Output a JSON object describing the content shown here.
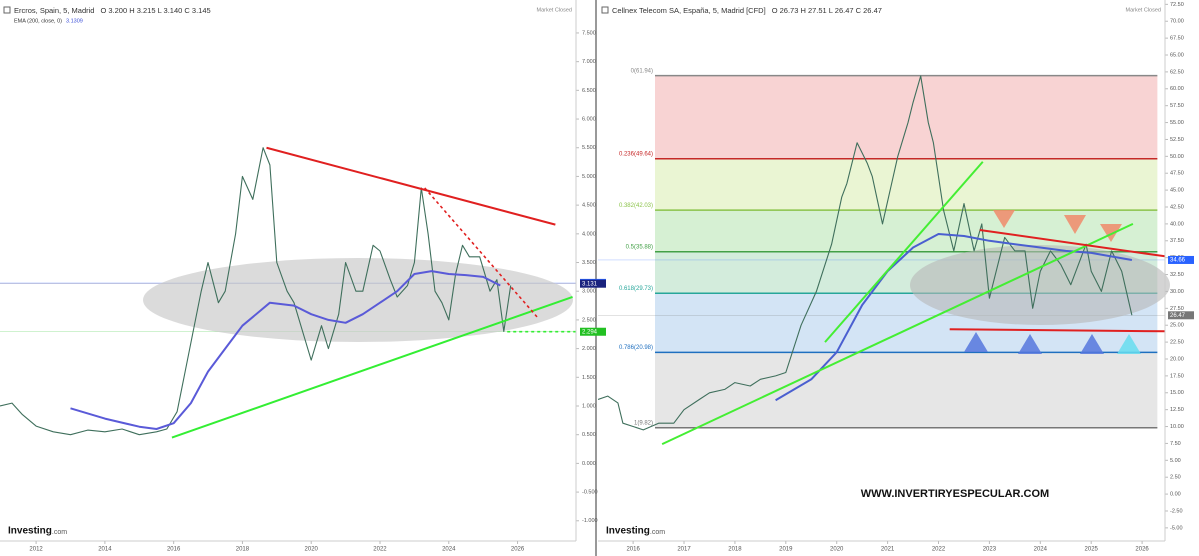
{
  "chart_data": [
    {
      "type": "line",
      "title": "Ercros, Spain, 5, Madrid",
      "ohlc": "O 3.200 H 3.215 L 3.140 C 3.145",
      "status": "Market Closed",
      "indicator": "EMA (200, close, 0)",
      "indicator_value": 3.1309,
      "xlim": [
        2010.95,
        2027.7
      ],
      "xticks": [
        2012,
        2014,
        2016,
        2018,
        2020,
        2022,
        2024,
        2026
      ],
      "ylim": [
        -1.3,
        7.9
      ],
      "yticks": [
        {
          "value": 7.5,
          "label": "7.500"
        },
        {
          "value": 7.0,
          "label": "7.000"
        },
        {
          "value": 6.5,
          "label": "6.500"
        },
        {
          "value": 6.0,
          "label": "6.000"
        },
        {
          "value": 5.5,
          "label": "5.500"
        },
        {
          "value": 5.0,
          "label": "5.000"
        },
        {
          "value": 4.5,
          "label": "4.500"
        },
        {
          "value": 4.0,
          "label": "4.000"
        },
        {
          "value": 3.5,
          "label": "3.500"
        },
        {
          "value": 3.0,
          "label": "3.000"
        },
        {
          "value": 2.5,
          "label": "2.500"
        },
        {
          "value": 2.0,
          "label": "2.000"
        },
        {
          "value": 1.5,
          "label": "1.500"
        },
        {
          "value": 1.0,
          "label": "1.000"
        },
        {
          "value": 0.5,
          "label": "0.500"
        },
        {
          "value": 0.0,
          "label": "0.000"
        },
        {
          "value": -0.5,
          "label": "-0.500"
        },
        {
          "value": -1.0,
          "label": "-1.000"
        }
      ],
      "series": [
        {
          "color": "#3f6f5c",
          "x": [
            2010.95,
            2011.3,
            2011.6,
            2012.0,
            2012.5,
            2013.0,
            2013.5,
            2014.0,
            2014.5,
            2015.0,
            2015.5,
            2015.8,
            2016.1,
            2016.3,
            2016.6,
            2016.8,
            2017.0,
            2017.3,
            2017.5,
            2017.8,
            2018.0,
            2018.3,
            2018.6,
            2018.8,
            2019.0,
            2019.3,
            2019.5,
            2019.8,
            2020.0,
            2020.3,
            2020.5,
            2020.8,
            2021.0,
            2021.3,
            2021.5,
            2021.8,
            2022.0,
            2022.3,
            2022.5,
            2022.8,
            2023.0,
            2023.2,
            2023.4,
            2023.6,
            2023.8,
            2024.0,
            2024.2,
            2024.4,
            2024.6,
            2024.9,
            2025.2,
            2025.4,
            2025.6,
            2025.8
          ],
          "values": [
            1.0,
            1.05,
            0.85,
            0.65,
            0.55,
            0.5,
            0.58,
            0.55,
            0.6,
            0.5,
            0.55,
            0.6,
            0.9,
            1.5,
            2.4,
            3.0,
            3.5,
            2.8,
            3.0,
            4.0,
            5.0,
            4.6,
            5.5,
            5.2,
            3.5,
            3.0,
            2.8,
            2.2,
            1.8,
            2.4,
            2.0,
            2.6,
            3.5,
            3.0,
            3.0,
            3.8,
            3.7,
            3.2,
            2.9,
            3.1,
            3.5,
            4.8,
            4.0,
            3.0,
            2.8,
            2.5,
            3.3,
            3.8,
            3.6,
            3.6,
            3.0,
            3.2,
            2.3,
            3.1
          ]
        },
        {
          "color": "#5a5ad8",
          "x": [
            2013.0,
            2014.0,
            2015.0,
            2015.5,
            2016.0,
            2016.5,
            2017.0,
            2017.5,
            2018.0,
            2018.8,
            2019.5,
            2020.0,
            2020.5,
            2021.0,
            2021.5,
            2022.0,
            2022.5,
            2023.0,
            2023.5,
            2024.0,
            2024.5,
            2025.0,
            2025.5
          ],
          "values": [
            0.96,
            0.78,
            0.64,
            0.6,
            0.7,
            1.05,
            1.6,
            2.0,
            2.4,
            2.8,
            2.75,
            2.6,
            2.5,
            2.45,
            2.6,
            2.8,
            3.0,
            3.3,
            3.35,
            3.3,
            3.28,
            3.25,
            3.1
          ]
        }
      ],
      "trendlines": [
        {
          "color": "#e02020",
          "dash": false,
          "x": [
            2018.7,
            2027.1
          ],
          "values": [
            5.5,
            4.16
          ]
        },
        {
          "color": "#33ee33",
          "dash": false,
          "x": [
            2015.95,
            2027.6
          ],
          "values": [
            0.45,
            2.9
          ]
        },
        {
          "color": "#e02020",
          "dash": true,
          "x": [
            2023.3,
            2026.6
          ],
          "values": [
            4.8,
            2.53
          ]
        },
        {
          "color": "#33ee33",
          "dash": true,
          "x": [
            2025.7,
            2027.7
          ],
          "values": [
            2.294,
            2.294
          ]
        }
      ],
      "price_labels": [
        {
          "value": 3.145,
          "color": "#2962ff"
        },
        {
          "value": 3.131,
          "color": "#1a237e"
        },
        {
          "value": 2.294,
          "color": "#22c022"
        }
      ]
    },
    {
      "type": "line",
      "title": "Cellnex Telecom SA, España, 5, Madrid [CFD]",
      "ohlc": "O 26.73 H 27.51 L 26.47 C 26.47",
      "status": "Market Closed",
      "xlim": [
        2015.31,
        2026.45
      ],
      "xticks": [
        2016,
        2017,
        2018,
        2019,
        2020,
        2021,
        2022,
        2023,
        2024,
        2025,
        2026
      ],
      "ylim": [
        -6.5,
        72.7
      ],
      "yticks": [
        {
          "value": 72.5,
          "label": "72.50"
        },
        {
          "value": 70,
          "label": "70.00"
        },
        {
          "value": 67.5,
          "label": "67.50"
        },
        {
          "value": 65,
          "label": "65.00"
        },
        {
          "value": 62.5,
          "label": "62.50"
        },
        {
          "value": 60,
          "label": "60.00"
        },
        {
          "value": 57.5,
          "label": "57.50"
        },
        {
          "value": 55,
          "label": "55.00"
        },
        {
          "value": 52.5,
          "label": "52.50"
        },
        {
          "value": 50,
          "label": "50.00"
        },
        {
          "value": 47.5,
          "label": "47.50"
        },
        {
          "value": 45,
          "label": "45.00"
        },
        {
          "value": 42.5,
          "label": "42.50"
        },
        {
          "value": 40,
          "label": "40.00"
        },
        {
          "value": 37.5,
          "label": "37.50"
        },
        {
          "value": 35,
          "label": "35.00"
        },
        {
          "value": 32.5,
          "label": "32.50"
        },
        {
          "value": 30,
          "label": "30.00"
        },
        {
          "value": 27.5,
          "label": "27.50"
        },
        {
          "value": 25,
          "label": "25.00"
        },
        {
          "value": 22.5,
          "label": "22.50"
        },
        {
          "value": 20,
          "label": "20.00"
        },
        {
          "value": 17.5,
          "label": "17.50"
        },
        {
          "value": 15,
          "label": "15.00"
        },
        {
          "value": 12.5,
          "label": "12.50"
        },
        {
          "value": 10,
          "label": "10.00"
        },
        {
          "value": 7.5,
          "label": "7.50"
        },
        {
          "value": 5,
          "label": "5.00"
        },
        {
          "value": 2.5,
          "label": "2.50"
        },
        {
          "value": 0,
          "label": "0.00"
        },
        {
          "value": -2.5,
          "label": "-2.50"
        },
        {
          "value": -5,
          "label": "-5.00"
        }
      ],
      "fib": {
        "x": [
          2016.43,
          2026.3
        ],
        "levels": [
          {
            "label": "0(61.94)",
            "value": 61.94,
            "color": "#888888",
            "fill": "#f8d3d3"
          },
          {
            "label": "0.236(49.64)",
            "value": 49.64,
            "color": "#c62828",
            "fill": "#eaf5d3"
          },
          {
            "label": "0.382(42.03)",
            "value": 42.03,
            "color": "#8bc34a",
            "fill": "#d6f0d3"
          },
          {
            "label": "0.5(35.88)",
            "value": 35.88,
            "color": "#43a047",
            "fill": "#d3ecdc"
          },
          {
            "label": "0.618(29.73)",
            "value": 29.73,
            "color": "#26a69a",
            "fill": "#d3e4f5"
          },
          {
            "label": "0.786(20.98)",
            "value": 20.98,
            "color": "#1e6fbf",
            "fill": "#e6e6e6"
          },
          {
            "label": "1(9.82)",
            "value": 9.82,
            "color": "#777777"
          }
        ]
      },
      "series": [
        {
          "color": "#3f6f5c",
          "x": [
            2015.31,
            2015.5,
            2015.7,
            2015.8,
            2016.0,
            2016.2,
            2016.5,
            2016.8,
            2017.0,
            2017.3,
            2017.5,
            2017.8,
            2018.0,
            2018.3,
            2018.5,
            2018.8,
            2019.0,
            2019.3,
            2019.6,
            2019.9,
            2020.1,
            2020.2,
            2020.4,
            2020.6,
            2020.7,
            2020.9,
            2021.2,
            2021.4,
            2021.5,
            2021.65,
            2021.8,
            2021.9,
            2022.1,
            2022.3,
            2022.5,
            2022.7,
            2022.85,
            2023.0,
            2023.3,
            2023.5,
            2023.7,
            2023.85,
            2024.0,
            2024.2,
            2024.4,
            2024.6,
            2024.9,
            2025.0,
            2025.2,
            2025.4,
            2025.6,
            2025.8
          ],
          "values": [
            14,
            14.5,
            13.5,
            10.5,
            10,
            9.5,
            10.5,
            10.5,
            12.5,
            14,
            15,
            15.5,
            16.5,
            16,
            17,
            17.5,
            18,
            25,
            30,
            37,
            44,
            46,
            52,
            49,
            47,
            40,
            50,
            55,
            58,
            61.9,
            55,
            52,
            42,
            36,
            43,
            36,
            40,
            29,
            38,
            36,
            36,
            27.5,
            33,
            36,
            34,
            31,
            37,
            33,
            30,
            36,
            33,
            26.47
          ]
        },
        {
          "color": "#4a5fd0",
          "x": [
            2018.8,
            2019.5,
            2020.0,
            2020.5,
            2021.0,
            2021.5,
            2022.0,
            2022.5,
            2023.0,
            2023.5,
            2024.0,
            2024.5,
            2025.0,
            2025.8
          ],
          "values": [
            13.9,
            17,
            21,
            28,
            33,
            36.5,
            38.5,
            38.2,
            37.5,
            37,
            36.5,
            36,
            35.7,
            34.66
          ]
        }
      ],
      "trendlines": [
        {
          "color": "#44ee33",
          "dash": false,
          "x": [
            2016.57,
            2025.82
          ],
          "values": [
            7.4,
            40.0
          ]
        },
        {
          "color": "#44ee33",
          "dash": false,
          "x": [
            2019.77,
            2022.87
          ],
          "values": [
            22.5,
            49.2
          ]
        },
        {
          "color": "#e02020",
          "dash": false,
          "x": [
            2022.81,
            2026.45
          ],
          "values": [
            39.1,
            35.2
          ]
        },
        {
          "color": "#e02020",
          "dash": false,
          "x": [
            2022.22,
            2026.45
          ],
          "values": [
            24.4,
            24.1
          ]
        }
      ],
      "price_labels": [
        {
          "value": 34.66,
          "color": "#2962ff"
        },
        {
          "value": 26.47,
          "color": "#777777"
        }
      ]
    }
  ],
  "brand": "Investing",
  "brand_domain": ".com",
  "watermark": "WWW.INVERTIRYESPECULAR.COM"
}
